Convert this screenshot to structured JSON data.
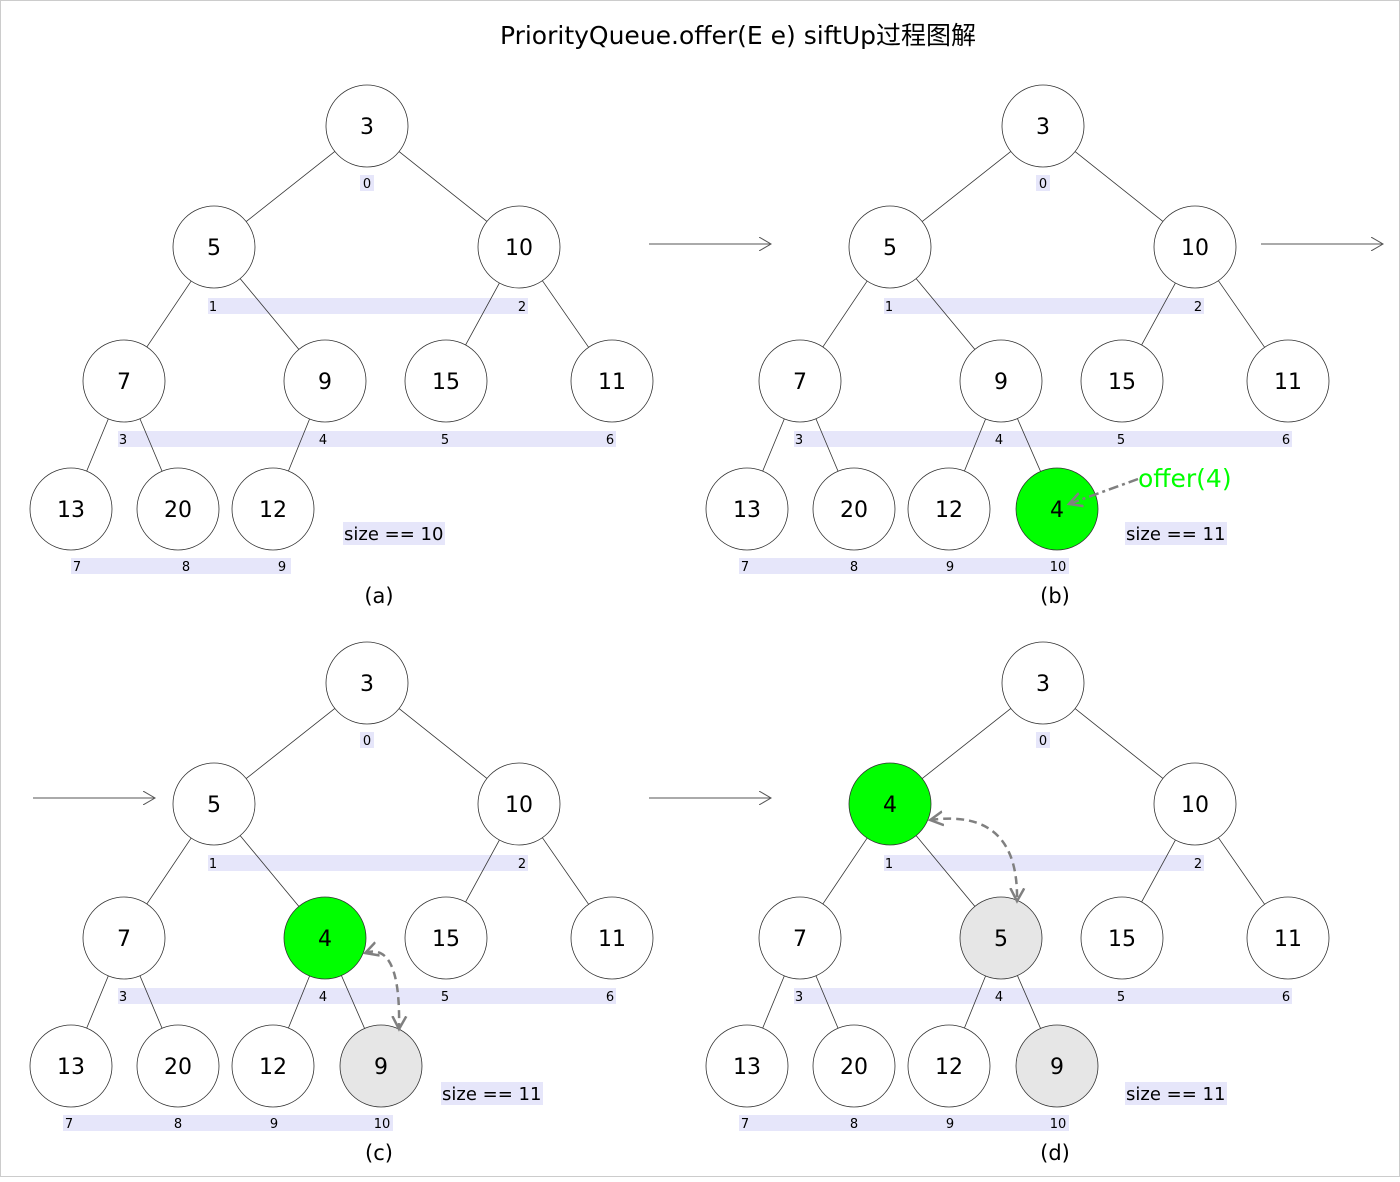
{
  "title": "PriorityQueue.offer(E e) siftUp过程图解",
  "colors": {
    "inserted": "#00ff00",
    "swapped": "#e6e6e6",
    "normal": "#ffffff",
    "index_bg": "#e6e6fa",
    "annotation": "#00ff00",
    "arrow": "#808080"
  },
  "panels": [
    {
      "caption": "(a)",
      "size_label": "size == 10",
      "nodes": [
        "3",
        "5",
        "10",
        "7",
        "9",
        "15",
        "11",
        "13",
        "20",
        "12"
      ],
      "highlight": {},
      "indices": [
        "0",
        "1",
        "2",
        "3",
        "4",
        "5",
        "6",
        "7",
        "8",
        "9"
      ]
    },
    {
      "caption": "(b)",
      "size_label": "size == 11",
      "nodes": [
        "3",
        "5",
        "10",
        "7",
        "9",
        "15",
        "11",
        "13",
        "20",
        "12",
        "4"
      ],
      "highlight": {
        "10": "inserted"
      },
      "indices": [
        "0",
        "1",
        "2",
        "3",
        "4",
        "5",
        "6",
        "7",
        "8",
        "9",
        "10"
      ],
      "annotation": "offer(4)"
    },
    {
      "caption": "(c)",
      "size_label": "size == 11",
      "nodes": [
        "3",
        "5",
        "10",
        "7",
        "4",
        "15",
        "11",
        "13",
        "20",
        "12",
        "9"
      ],
      "highlight": {
        "4": "inserted",
        "10": "swapped"
      },
      "indices": [
        "0",
        "1",
        "2",
        "3",
        "4",
        "5",
        "6",
        "7",
        "8",
        "9",
        "10"
      ],
      "swap": [
        4,
        10
      ]
    },
    {
      "caption": "(d)",
      "size_label": "size == 11",
      "nodes": [
        "3",
        "4",
        "10",
        "7",
        "5",
        "15",
        "11",
        "13",
        "20",
        "12",
        "9"
      ],
      "highlight": {
        "1": "inserted",
        "4": "swapped",
        "10": "swapped"
      },
      "indices": [
        "0",
        "1",
        "2",
        "3",
        "4",
        "5",
        "6",
        "7",
        "8",
        "9",
        "10"
      ],
      "swap": [
        1,
        4
      ]
    }
  ]
}
